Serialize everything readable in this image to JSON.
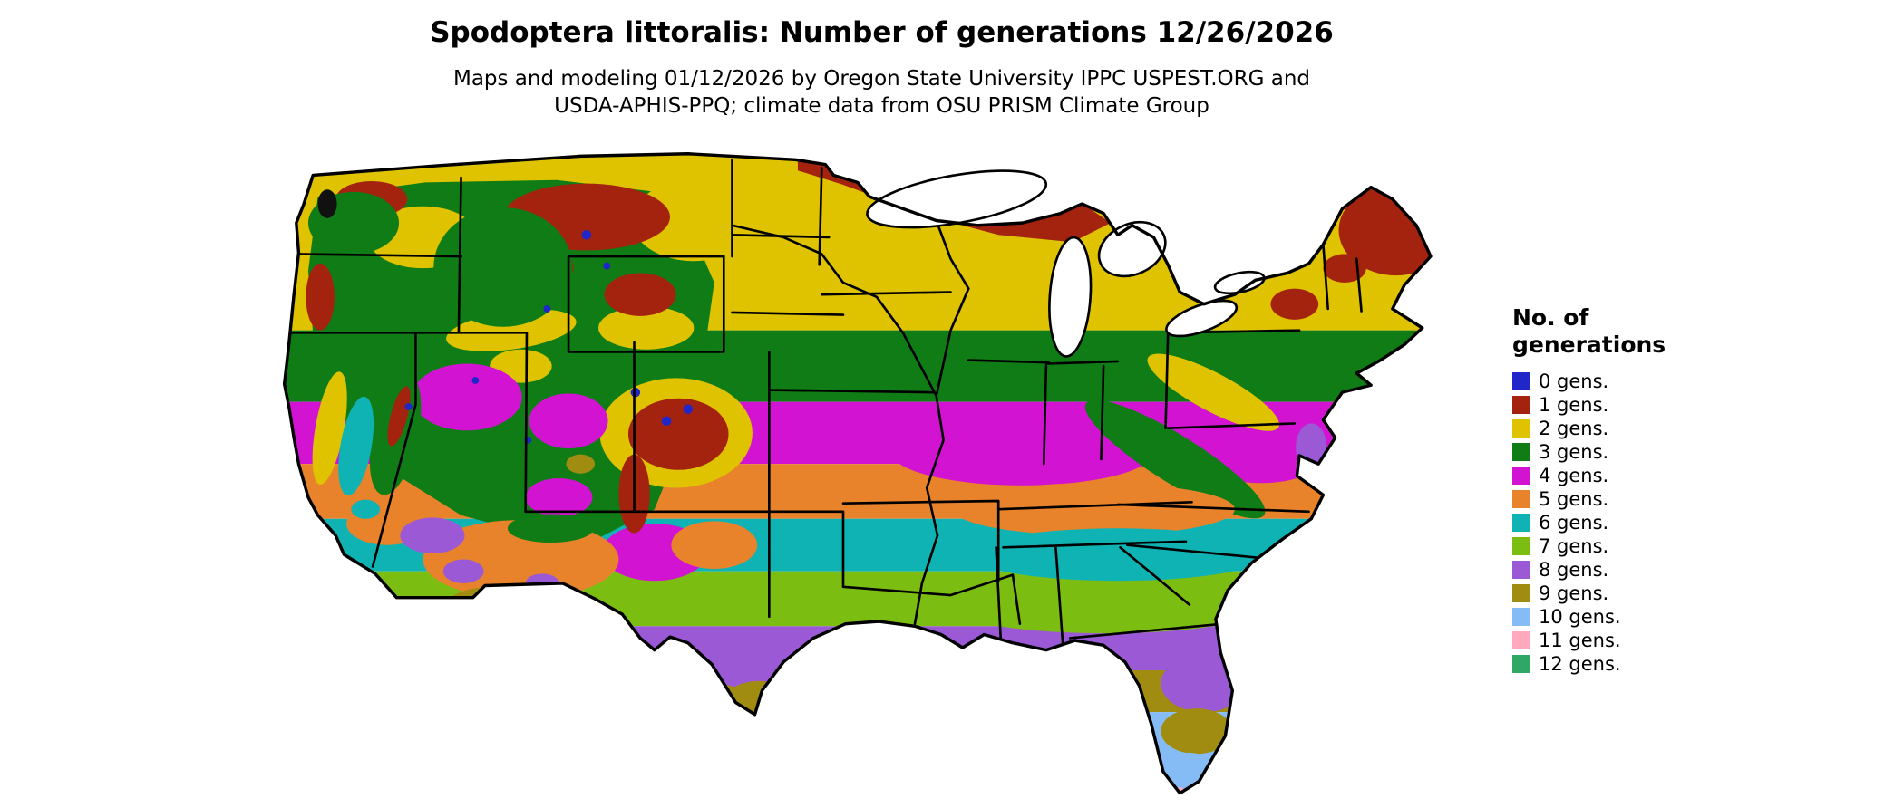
{
  "header": {
    "title": "Spodoptera littoralis: Number of generations 12/26/2026",
    "subtitle_line1": "Maps and modeling 01/12/2026 by Oregon State University IPPC USPEST.ORG and",
    "subtitle_line2": "USDA-APHIS-PPQ; climate data from OSU PRISM Climate Group"
  },
  "legend": {
    "title_line1": "No. of",
    "title_line2": "generations",
    "items": [
      {
        "label": "0 gens.",
        "color": "#2126C9"
      },
      {
        "label": "1 gens.",
        "color": "#A3230F"
      },
      {
        "label": "2 gens.",
        "color": "#DFC300"
      },
      {
        "label": "3 gens.",
        "color": "#0F7C16"
      },
      {
        "label": "4 gens.",
        "color": "#D214D2"
      },
      {
        "label": "5 gens.",
        "color": "#E8822B"
      },
      {
        "label": "6 gens.",
        "color": "#0FB3B3"
      },
      {
        "label": "7 gens.",
        "color": "#7CBD12"
      },
      {
        "label": "8 gens.",
        "color": "#9B59D6"
      },
      {
        "label": "9 gens.",
        "color": "#A08C10"
      },
      {
        "label": "10 gens.",
        "color": "#86BCF5"
      },
      {
        "label": "11 gens.",
        "color": "#FFA9BE"
      },
      {
        "label": "12 gens.",
        "color": "#2FA865"
      }
    ]
  },
  "map": {
    "description": "Raster choropleth of the contiguous United States shaded by modeled number of Spodoptera littoralis generations, with black state boundaries overlaid; background is white.",
    "zones_north_to_south": [
      "1 gens. pockets along the Canadian border, around Lake Superior, the northern Rockies and northern New England",
      "2 gens. across the northern plains, upper Midwest and Northeast",
      "3 gens. across Nebraska, Iowa, Illinois, Indiana, Ohio and the central Appalachians",
      "4 gens. across Kansas, Missouri, Kentucky and Virginia",
      "5 gens. across Oklahoma, Arkansas, Tennessee and the Carolinas",
      "6 gens. across north-central Texas and the inland Gulf states",
      "7 gens. along the Gulf Coastal Plain",
      "8-9 gens. in south Texas, the desert Southwest and central Florida",
      "10 gens. and higher in far southern Florida",
      "Mixed 0-9 gens. elevation-driven mosaic across the mountainous West"
    ]
  }
}
